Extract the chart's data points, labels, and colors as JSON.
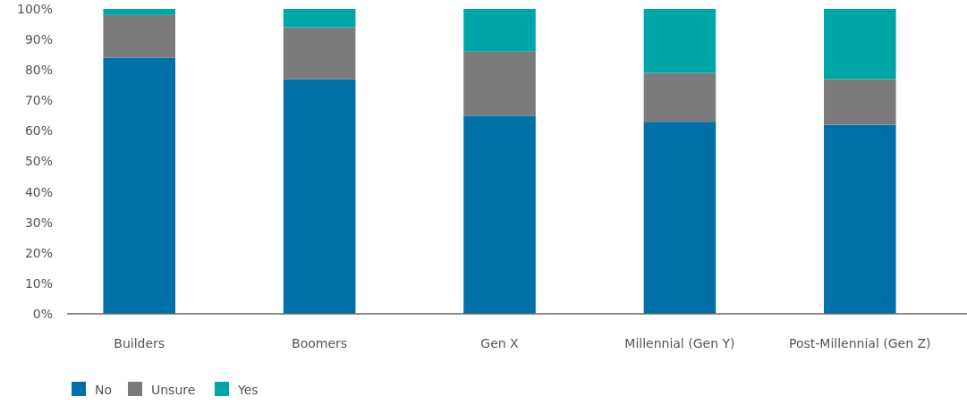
{
  "chart_data": {
    "type": "bar",
    "stacked": true,
    "categories": [
      "Builders",
      "Boomers",
      "Gen X",
      "Millennial (Gen Y)",
      "Post-Millennial (Gen Z)"
    ],
    "series": [
      {
        "name": "No",
        "color": "#0070a8",
        "values": [
          84,
          77,
          65,
          63,
          62
        ]
      },
      {
        "name": "Unsure",
        "color": "#7b7b7d",
        "values": [
          14,
          17,
          21,
          16,
          15
        ]
      },
      {
        "name": "Yes",
        "color": "#00a5a8",
        "values": [
          2,
          6,
          14,
          21,
          23
        ]
      }
    ],
    "ylim": [
      0,
      100
    ],
    "yticks": [
      {
        "value": 0,
        "label": "0%"
      },
      {
        "value": 10,
        "label": "10%"
      },
      {
        "value": 20,
        "label": "20%"
      },
      {
        "value": 30,
        "label": "30%"
      },
      {
        "value": 40,
        "label": "40%"
      },
      {
        "value": 50,
        "label": "50%"
      },
      {
        "value": 60,
        "label": "60%"
      },
      {
        "value": 70,
        "label": "70%"
      },
      {
        "value": 80,
        "label": "80%"
      },
      {
        "value": 90,
        "label": "90%"
      },
      {
        "value": 100,
        "label": "100%"
      }
    ],
    "grid": false,
    "legend": "bottom left"
  }
}
